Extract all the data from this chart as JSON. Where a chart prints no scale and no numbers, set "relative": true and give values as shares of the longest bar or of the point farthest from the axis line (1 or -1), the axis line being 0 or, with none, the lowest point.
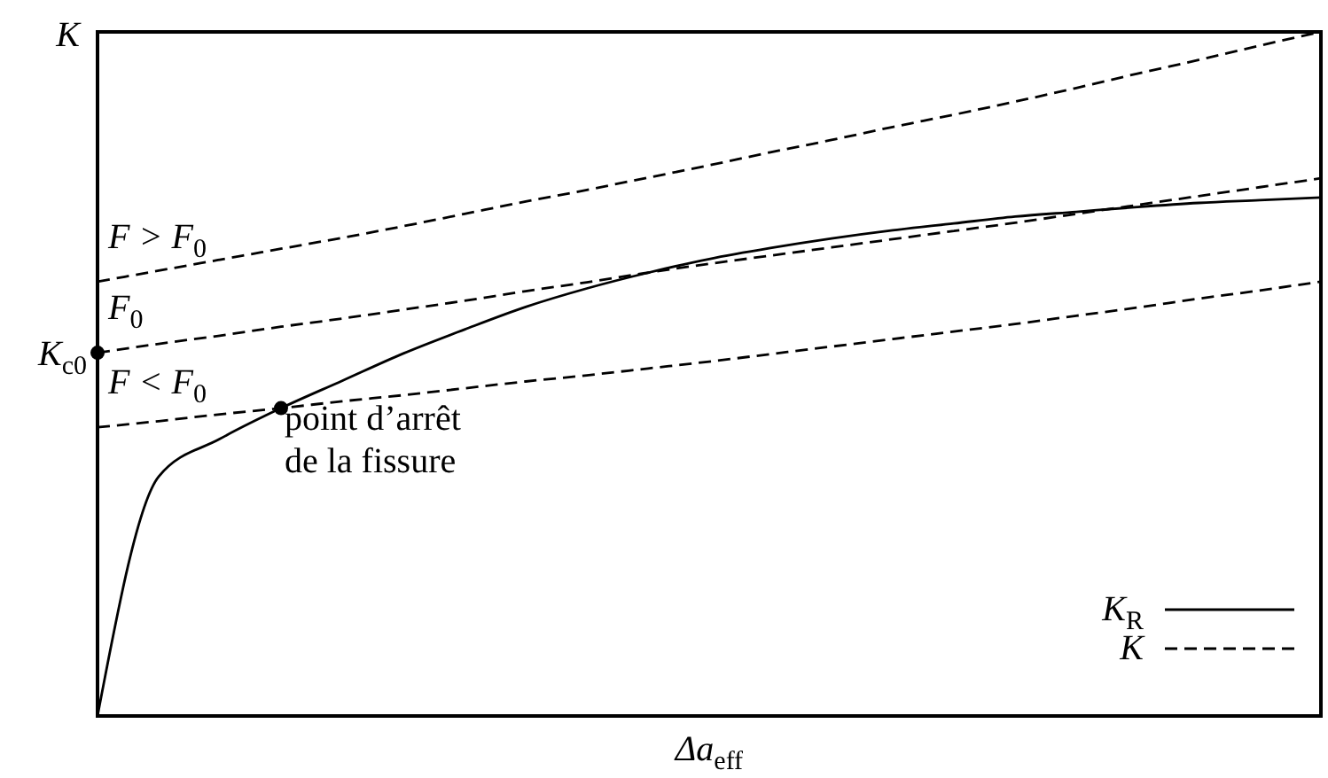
{
  "chart_data": {
    "type": "line",
    "relative": true,
    "xlabel": "Δa$_{eff}$",
    "ylabel": "K",
    "legend": "bottom right",
    "categories": [
      null,
      null,
      null,
      null,
      null,
      null,
      null,
      null,
      null,
      null,
      null,
      null,
      null,
      null,
      null,
      null,
      null,
      null,
      null,
      null,
      null
    ],
    "series": [
      {
        "name": "K$_{R}$",
        "color": "#000000",
        "line_style": "solid",
        "values": [
          0,
          0.35,
          0.405,
          0.45,
          0.49,
          0.53,
          0.565,
          0.598,
          0.625,
          0.648,
          0.668,
          0.684,
          0.698,
          0.71,
          0.72,
          0.73,
          0.737,
          0.744,
          0.75,
          0.754,
          0.758
        ]
      },
      {
        "name": "K",
        "color": "#000000",
        "line_style": "dashed",
        "values": [
          0.635,
          0.651,
          0.667,
          0.683,
          0.699,
          0.716,
          0.734,
          0.752,
          0.769,
          0.787,
          0.805,
          0.824,
          0.842,
          0.861,
          0.879,
          0.898,
          0.918,
          0.939,
          0.959,
          0.98,
          1.0
        ]
      },
      {
        "color": "#000000",
        "line_style": "dashed",
        "values": [
          0.531,
          0.544,
          0.556,
          0.569,
          0.581,
          0.594,
          0.607,
          0.621,
          0.634,
          0.648,
          0.661,
          0.673,
          0.685,
          0.697,
          0.709,
          0.721,
          0.734,
          0.747,
          0.76,
          0.773,
          0.786
        ]
      },
      {
        "color": "#000000",
        "line_style": "dashed",
        "values": [
          0.422,
          0.431,
          0.441,
          0.45,
          0.46,
          0.469,
          0.479,
          0.489,
          0.498,
          0.508,
          0.518,
          0.529,
          0.54,
          0.551,
          0.562,
          0.573,
          0.585,
          0.597,
          0.61,
          0.622,
          0.635
        ]
      }
    ],
    "annotations": [
      "F > F$_{0}$",
      "F$_{0}$",
      "F < F$_{0}$",
      "K$_{c0}$",
      {
        "text": "point d’arrêt de la fissure",
        "y": 0.45
      }
    ]
  }
}
